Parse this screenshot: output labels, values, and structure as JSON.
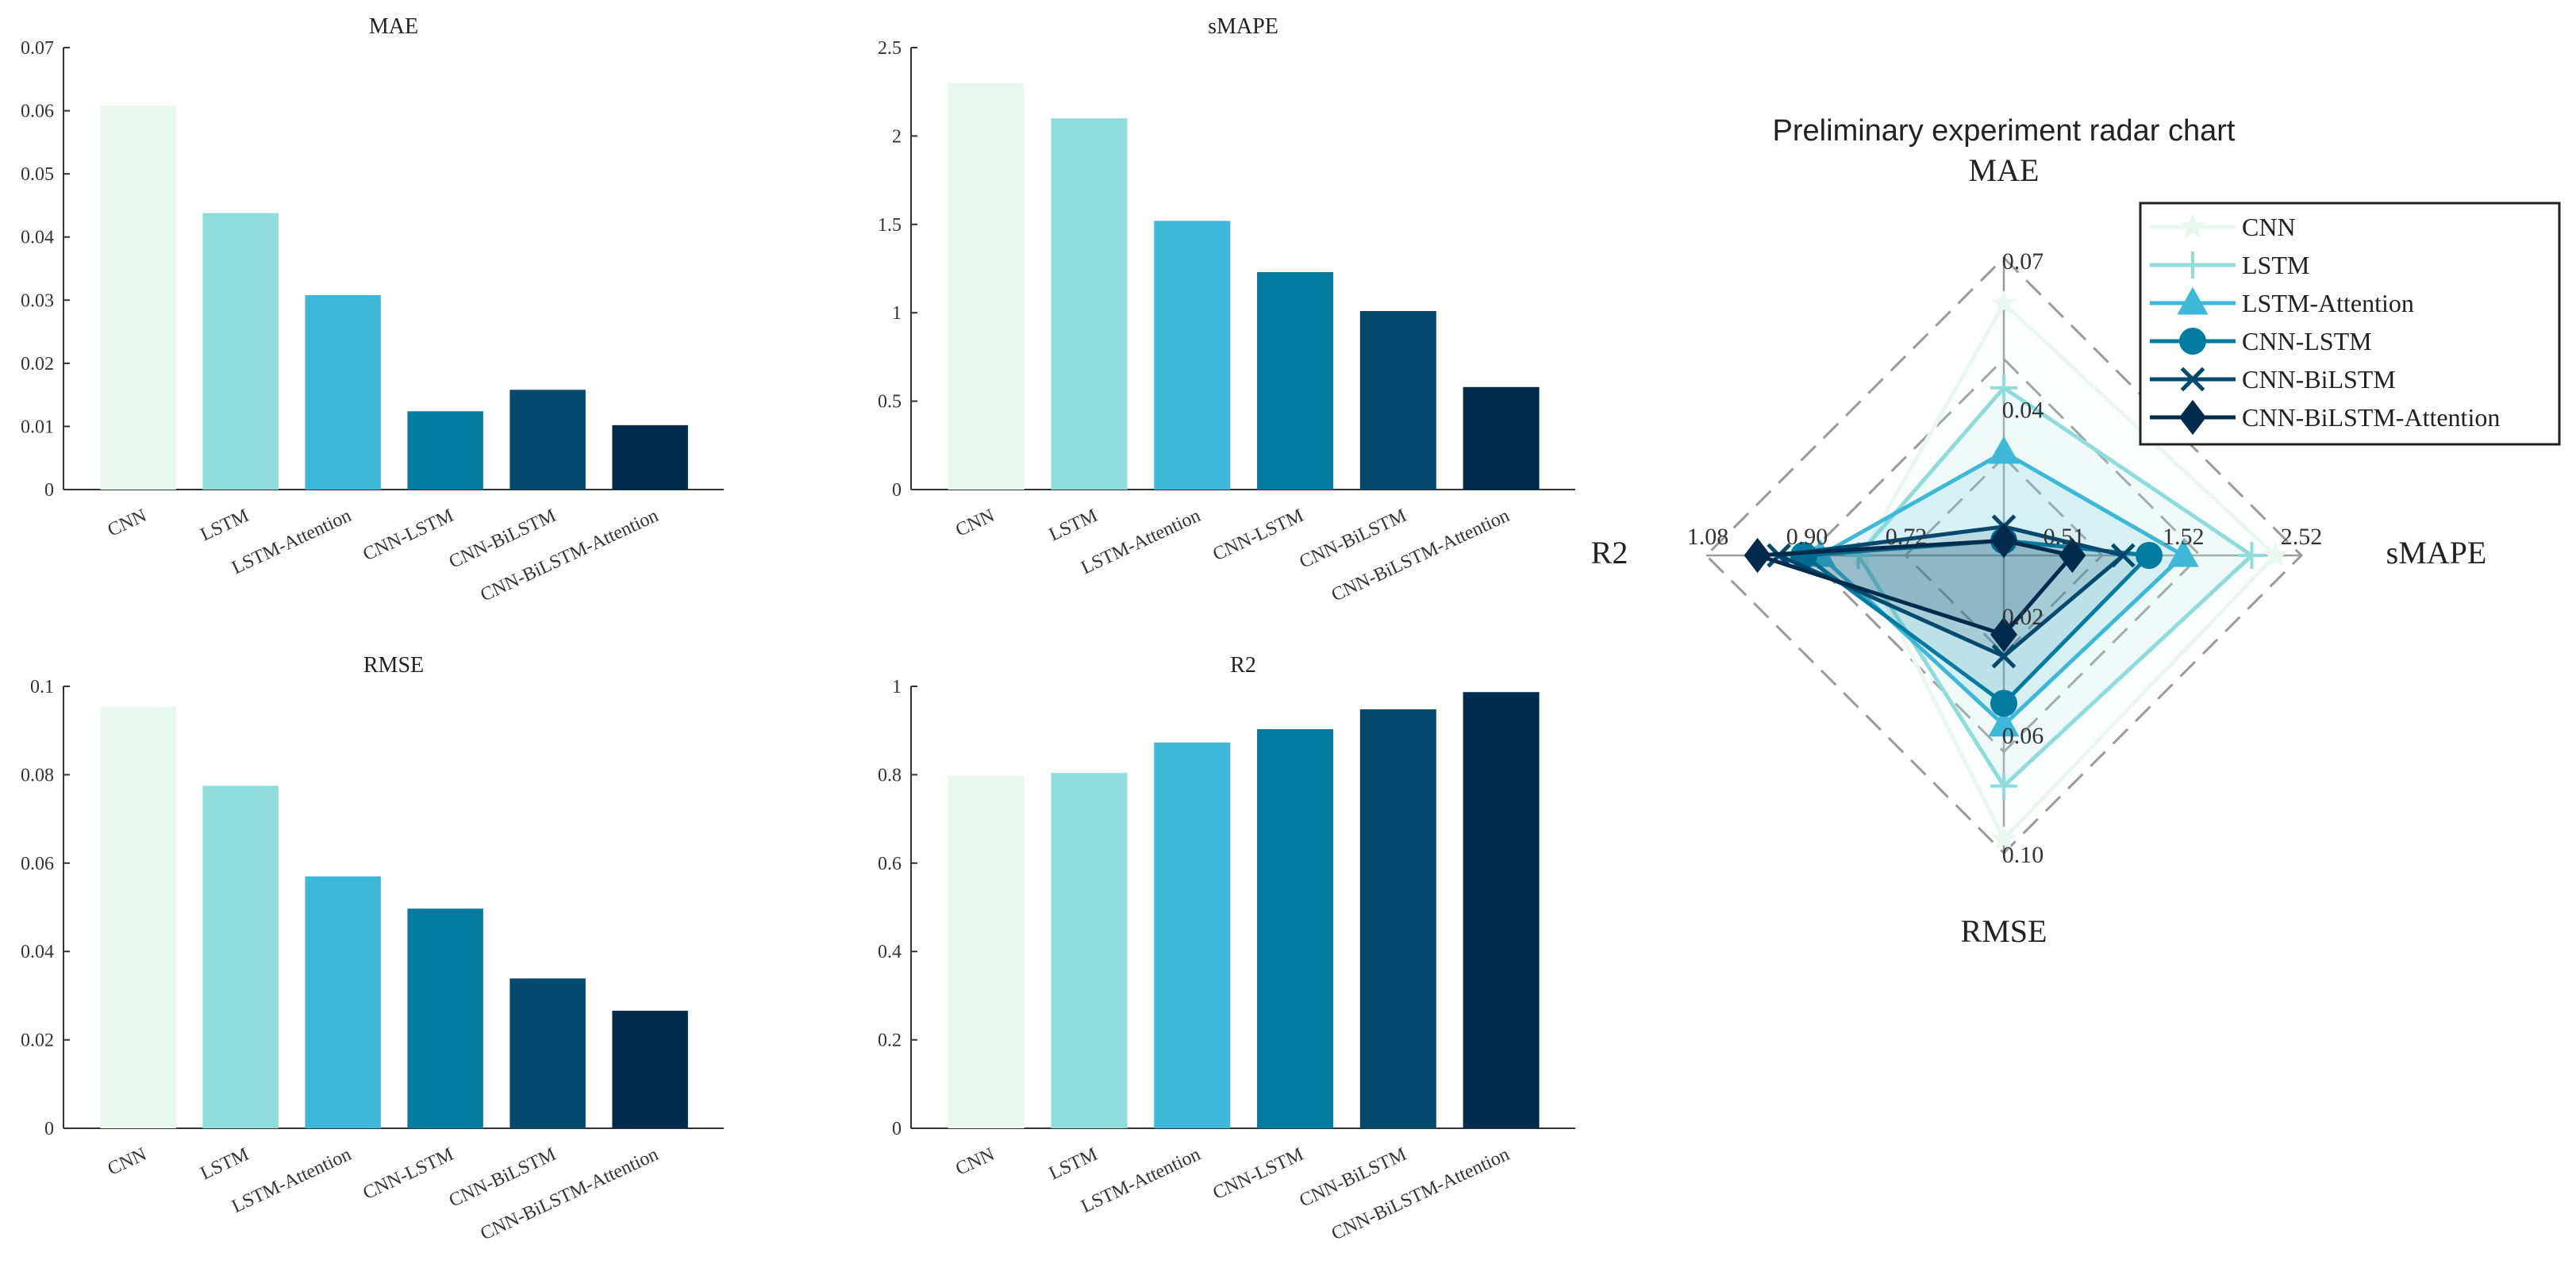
{
  "chart_data": [
    {
      "type": "bar",
      "title": "MAE",
      "categories": [
        "CNN",
        "LSTM",
        "LSTM-Attention",
        "CNN-LSTM",
        "CNN-BiLSTM",
        "CNN-BiLSTM-Attention"
      ],
      "values": [
        0.0608,
        0.0438,
        0.0308,
        0.0124,
        0.0158,
        0.0102
      ],
      "ylim": [
        0,
        0.07
      ],
      "yticks": [
        0,
        0.01,
        0.02,
        0.03,
        0.04,
        0.05,
        0.06,
        0.07
      ],
      "ytick_labels": [
        "0",
        "0.01",
        "0.02",
        "0.03",
        "0.04",
        "0.05",
        "0.06",
        "0.07"
      ],
      "xlabel": "",
      "ylabel": ""
    },
    {
      "type": "bar",
      "title": "sMAPE",
      "categories": [
        "CNN",
        "LSTM",
        "LSTM-Attention",
        "CNN-LSTM",
        "CNN-BiLSTM",
        "CNN-BiLSTM-Attention"
      ],
      "values": [
        2.3,
        2.1,
        1.52,
        1.23,
        1.01,
        0.58
      ],
      "ylim": [
        0,
        2.5
      ],
      "yticks": [
        0,
        0.5,
        1,
        1.5,
        2,
        2.5
      ],
      "ytick_labels": [
        "0",
        "0.5",
        "1",
        "1.5",
        "2",
        "2.5"
      ],
      "xlabel": "",
      "ylabel": ""
    },
    {
      "type": "bar",
      "title": "RMSE",
      "categories": [
        "CNN",
        "LSTM",
        "LSTM-Attention",
        "CNN-LSTM",
        "CNN-BiLSTM",
        "CNN-BiLSTM-Attention"
      ],
      "values": [
        0.0953,
        0.0775,
        0.057,
        0.0497,
        0.0339,
        0.0266
      ],
      "ylim": [
        0,
        0.1
      ],
      "yticks": [
        0,
        0.02,
        0.04,
        0.06,
        0.08,
        0.1
      ],
      "ytick_labels": [
        "0",
        "0.02",
        "0.04",
        "0.06",
        "0.08",
        "0.1"
      ],
      "xlabel": "",
      "ylabel": ""
    },
    {
      "type": "bar",
      "title": "R2",
      "categories": [
        "CNN",
        "LSTM",
        "LSTM-Attention",
        "CNN-LSTM",
        "CNN-BiLSTM",
        "CNN-BiLSTM-Attention"
      ],
      "values": [
        0.798,
        0.804,
        0.873,
        0.903,
        0.948,
        0.987
      ],
      "ylim": [
        0,
        1
      ],
      "yticks": [
        0,
        0.2,
        0.4,
        0.6,
        0.8,
        1
      ],
      "ytick_labels": [
        "0",
        "0.2",
        "0.4",
        "0.6",
        "0.8",
        "1"
      ],
      "xlabel": "",
      "ylabel": ""
    },
    {
      "type": "radar",
      "title": "Preliminary experiment radar chart",
      "axes": [
        {
          "name": "MAE",
          "ticks": [
            "0.04",
            "0.07"
          ],
          "tick_values": [
            0.04,
            0.07
          ],
          "min": 0.01,
          "max": 0.07
        },
        {
          "name": "sMAPE",
          "ticks": [
            "0.51",
            "1.52",
            "2.52"
          ],
          "tick_values": [
            0.51,
            1.52,
            2.52
          ],
          "min": 0.0,
          "max": 2.52
        },
        {
          "name": "RMSE",
          "ticks": [
            "0.02",
            "0.06",
            "0.10"
          ],
          "tick_values": [
            0.02,
            0.06,
            0.1
          ],
          "min": 0.0,
          "max": 0.1
        },
        {
          "name": "R2",
          "ticks": [
            "0.72",
            "0.90",
            "1.08"
          ],
          "tick_values": [
            0.72,
            0.9,
            1.08
          ],
          "min": 0.54,
          "max": 1.08
        }
      ],
      "series": [
        {
          "name": "CNN",
          "values": [
            0.0608,
            2.3,
            0.0953,
            0.798
          ]
        },
        {
          "name": "LSTM",
          "values": [
            0.0438,
            2.1,
            0.0775,
            0.804
          ]
        },
        {
          "name": "LSTM-Attention",
          "values": [
            0.0308,
            1.52,
            0.057,
            0.873
          ]
        },
        {
          "name": "CNN-LSTM",
          "values": [
            0.0124,
            1.23,
            0.0497,
            0.903
          ]
        },
        {
          "name": "CNN-BiLSTM",
          "values": [
            0.0158,
            1.01,
            0.0339,
            0.948
          ]
        },
        {
          "name": "CNN-BiLSTM-Attention",
          "values": [
            0.0102,
            0.58,
            0.0266,
            0.987
          ]
        }
      ],
      "legend_position": "top-right"
    }
  ],
  "colors": [
    "#eaf7ef",
    "#8fdcdc",
    "#3db8d8",
    "#047ba1",
    "#054a6e",
    "#002b4d"
  ],
  "markers": [
    "star",
    "plus",
    "triangle",
    "circle",
    "x",
    "diamond"
  ]
}
